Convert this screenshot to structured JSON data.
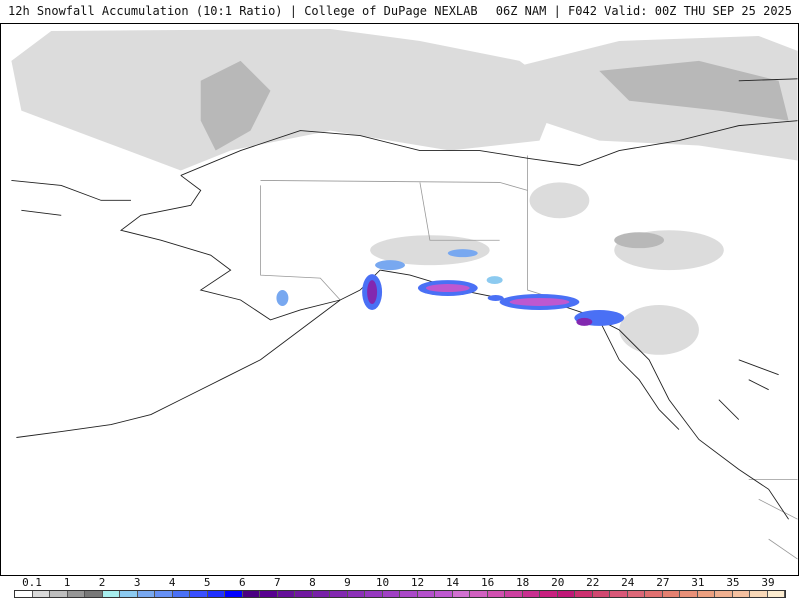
{
  "header": {
    "left": "12h Snowfall Accumulation (10:1 Ratio) | College of DuPage NEXLAB",
    "right": "06Z NAM | F042 Valid: 00Z THU SEP 25 2025"
  },
  "legend": {
    "labels": [
      "0.1",
      "1",
      "2",
      "3",
      "4",
      "5",
      "6",
      "7",
      "8",
      "9",
      "10",
      "12",
      "14",
      "16",
      "18",
      "20",
      "22",
      "24",
      "27",
      "31",
      "35",
      "39"
    ],
    "colors": [
      "#ffffff",
      "#d9d9d9",
      "#bdbdbd",
      "#969696",
      "#787878",
      "#a8eeee",
      "#8ccaf0",
      "#78a8f0",
      "#6690f5",
      "#4a70f5",
      "#3a50ff",
      "#2030ff",
      "#0000ff",
      "#4b0082",
      "#580090",
      "#65109a",
      "#7018a0",
      "#7820a8",
      "#8228b0",
      "#8c30b8",
      "#9638c0",
      "#a040c4",
      "#aa48c8",
      "#b450cc",
      "#be58d0",
      "#d070d0",
      "#d060c0",
      "#d050b0",
      "#cc40a0",
      "#c83090",
      "#c82080",
      "#c01878",
      "#cc3070",
      "#d04870",
      "#d85878",
      "#dc6878",
      "#e07070",
      "#e48070",
      "#e89078",
      "#eca080",
      "#f0b090",
      "#f4c0a0",
      "#f8d8b8",
      "#fcecd0"
    ]
  }
}
